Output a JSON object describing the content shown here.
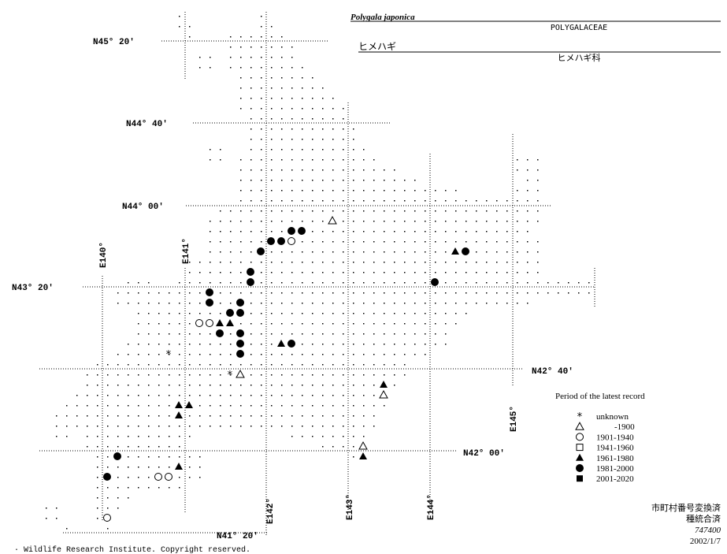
{
  "header": {
    "title": "Polygala japonica",
    "family": "POLYGALACEAE",
    "japanese_name": "ヒメハギ",
    "japanese_family": "ヒメハギ科"
  },
  "latitudes": [
    "N45° 20′",
    "N44° 40′",
    "N44° 00′",
    "N43° 20′",
    "N42° 40′",
    "N42° 00′",
    "N41° 20′"
  ],
  "longitudes": [
    "E140°",
    "E141°",
    "E142°",
    "E143°",
    "E144°",
    "E145°"
  ],
  "legend": {
    "title": "Period of the latest record",
    "entries": [
      "unknown",
      "-1900",
      "1901-1940",
      "1941-1960",
      "1961-1980",
      "1981-2000",
      "2001-2020"
    ]
  },
  "notes": [
    "市町村番号変換済",
    "種統合済",
    "747400",
    "2002/1/7"
  ],
  "copyright": "· Wildlife Research Institute. Copyright reserved."
}
